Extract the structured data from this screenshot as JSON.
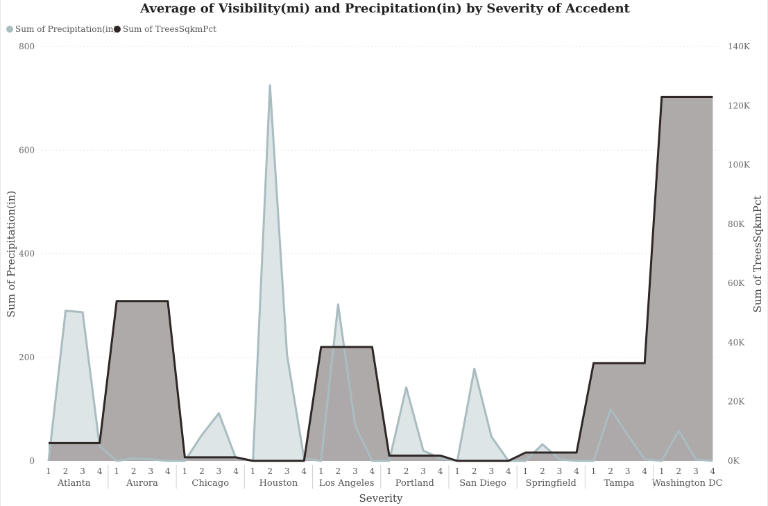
{
  "chart_data": {
    "type": "area",
    "title": "Average of Visibility(mi) and Precipitation(in) by Severity of Accedent",
    "xlabel": "Severity",
    "ylabel": "Sum of Precipitation(in)",
    "y2label": "Sum of TreesSqkmPct",
    "ylim": [
      0,
      800
    ],
    "y2lim": [
      0,
      140000
    ],
    "y_ticks": [
      "0",
      "200",
      "400",
      "600",
      "800"
    ],
    "y2_ticks": [
      "0K",
      "20K",
      "40K",
      "60K",
      "80K",
      "100K",
      "120K",
      "140K"
    ],
    "groups": [
      "Atlanta",
      "Aurora",
      "Chicago",
      "Houston",
      "Los Angeles",
      "Portland",
      "San Diego",
      "Springfield",
      "Tampa",
      "Washington DC"
    ],
    "sub_categories": [
      "1",
      "2",
      "3",
      "4"
    ],
    "grid": true,
    "legend_position": "top-left",
    "series": [
      {
        "name": "Sum of Precipitation(in)",
        "axis": "left",
        "color": "#a9bcc0",
        "fill": "#dde5e7",
        "values": [
          0,
          290,
          287,
          28,
          0,
          5,
          3,
          0,
          0,
          50,
          92,
          5,
          0,
          725,
          205,
          5,
          0,
          302,
          68,
          0,
          0,
          142,
          20,
          5,
          0,
          178,
          47,
          0,
          0,
          32,
          3,
          0,
          0,
          100,
          50,
          3,
          0,
          58,
          3,
          0
        ]
      },
      {
        "name": "Sum of TreesSqkmPct",
        "axis": "right",
        "color": "#2f2626",
        "fill": "#a9a4a4",
        "values": [
          6000,
          6000,
          6000,
          6000,
          54000,
          54000,
          54000,
          54000,
          1200,
          1200,
          1200,
          1200,
          0,
          0,
          0,
          0,
          38500,
          38500,
          38500,
          38500,
          1800,
          1800,
          1800,
          1800,
          0,
          0,
          0,
          0,
          2800,
          2800,
          2800,
          2800,
          33000,
          33000,
          33000,
          33000,
          123000,
          123000,
          123000,
          123000
        ]
      }
    ]
  }
}
